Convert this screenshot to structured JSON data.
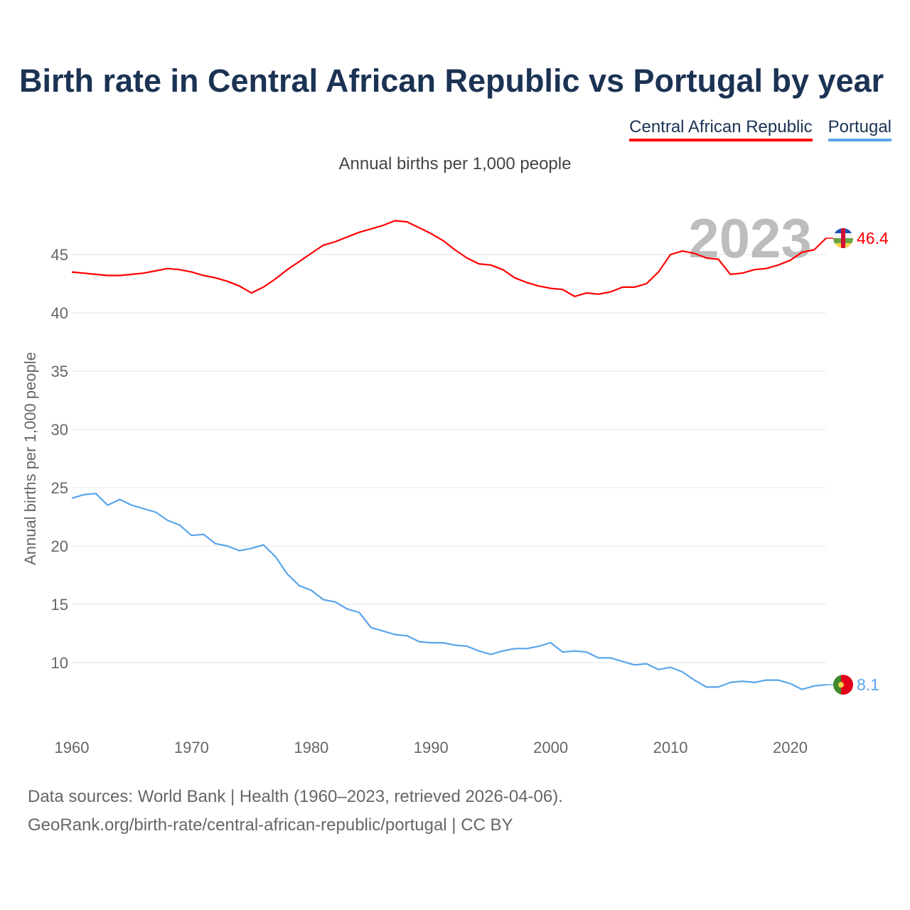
{
  "title": "Birth rate in Central African Republic vs Portugal by year",
  "subtitle": "Annual births per 1,000 people",
  "footer": {
    "line1": "Data sources: World Bank | Health (1960–2023, retrieved 2026-04-06).",
    "line2": "GeoRank.org/birth-rate/central-african-republic/portugal | CC BY"
  },
  "year_overlay": "2023",
  "chart_data": {
    "type": "line",
    "title": "Birth rate in Central African Republic vs Portugal by year",
    "xlabel": "",
    "ylabel": "Annual births per 1,000 people",
    "xlim": [
      1960,
      2023
    ],
    "ylim": [
      5,
      50
    ],
    "x_ticks": [
      "1960",
      "1970",
      "1980",
      "1990",
      "2000",
      "2010",
      "2020"
    ],
    "y_ticks": [
      "10",
      "15",
      "20",
      "25",
      "30",
      "35",
      "40",
      "45"
    ],
    "grid": true,
    "legend_position": "top-right",
    "x": [
      1960,
      1961,
      1962,
      1963,
      1964,
      1965,
      1966,
      1967,
      1968,
      1969,
      1970,
      1971,
      1972,
      1973,
      1974,
      1975,
      1976,
      1977,
      1978,
      1979,
      1980,
      1981,
      1982,
      1983,
      1984,
      1985,
      1986,
      1987,
      1988,
      1989,
      1990,
      1991,
      1992,
      1993,
      1994,
      1995,
      1996,
      1997,
      1998,
      1999,
      2000,
      2001,
      2002,
      2003,
      2004,
      2005,
      2006,
      2007,
      2008,
      2009,
      2010,
      2011,
      2012,
      2013,
      2014,
      2015,
      2016,
      2017,
      2018,
      2019,
      2020,
      2021,
      2022,
      2023
    ],
    "series": [
      {
        "name": "Central African Republic",
        "color": "#ff0000",
        "end_label": "46.4",
        "values": [
          43.5,
          43.4,
          43.3,
          43.2,
          43.2,
          43.3,
          43.4,
          43.6,
          43.8,
          43.7,
          43.5,
          43.2,
          43.0,
          42.7,
          42.3,
          41.7,
          42.2,
          42.9,
          43.7,
          44.4,
          45.1,
          45.8,
          46.1,
          46.5,
          46.9,
          47.2,
          47.5,
          47.9,
          47.8,
          47.3,
          46.8,
          46.2,
          45.4,
          44.7,
          44.2,
          44.1,
          43.7,
          43.0,
          42.6,
          42.3,
          42.1,
          42.0,
          41.4,
          41.7,
          41.6,
          41.8,
          42.2,
          42.2,
          42.5,
          43.5,
          45.0,
          45.3,
          45.1,
          44.7,
          44.6,
          43.3,
          43.4,
          43.7,
          43.8,
          44.1,
          44.5,
          45.2,
          45.4,
          46.4
        ]
      },
      {
        "name": "Portugal",
        "color": "#5aa5ea",
        "end_label": "8.1",
        "values": [
          24.1,
          24.4,
          24.5,
          23.5,
          24.0,
          23.5,
          23.2,
          22.9,
          22.2,
          21.8,
          20.9,
          21.0,
          20.2,
          20.0,
          19.6,
          19.8,
          20.1,
          19.1,
          17.6,
          16.6,
          16.2,
          15.4,
          15.2,
          14.6,
          14.3,
          13.0,
          12.7,
          12.4,
          12.3,
          11.8,
          11.7,
          11.7,
          11.5,
          11.4,
          11.0,
          10.7,
          11.0,
          11.2,
          11.2,
          11.4,
          11.7,
          10.9,
          11.0,
          10.9,
          10.4,
          10.4,
          10.1,
          9.8,
          9.9,
          9.4,
          9.6,
          9.2,
          8.5,
          7.9,
          7.9,
          8.3,
          8.4,
          8.3,
          8.5,
          8.5,
          8.2,
          7.7,
          8.0,
          8.1
        ]
      }
    ]
  }
}
